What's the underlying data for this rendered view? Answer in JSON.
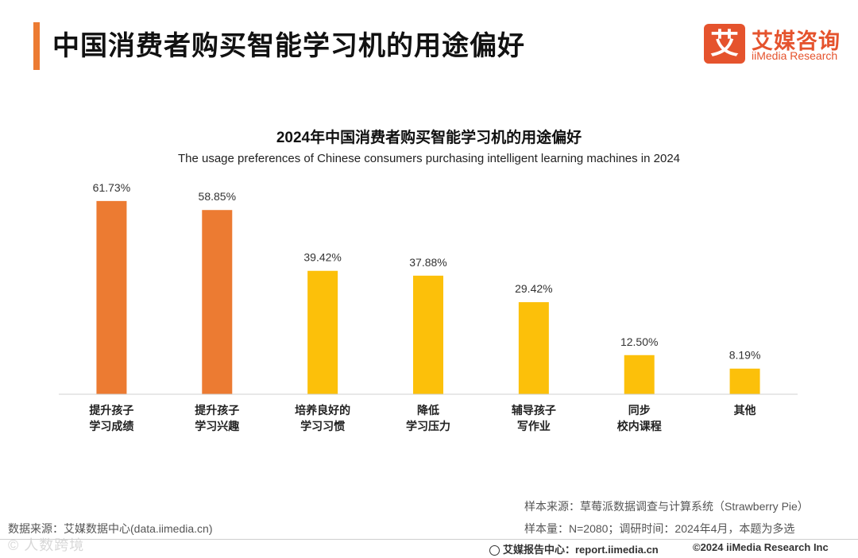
{
  "header": {
    "title": "中国消费者购买智能学习机的用途偏好",
    "logo_mark": "艾",
    "logo_cn": "艾媒咨询",
    "logo_en": "iiMedia Research"
  },
  "colors": {
    "accent": "#ec7b32",
    "bar_highlight": "#ec7b32",
    "bar_normal": "#fcc00a"
  },
  "chart_data": {
    "type": "bar",
    "title": "2024年中国消费者购买智能学习机的用途偏好",
    "subtitle": "The usage preferences of Chinese consumers purchasing intelligent learning machines in 2024",
    "categories": [
      [
        "提升孩子",
        "学习成绩"
      ],
      [
        "提升孩子",
        "学习兴趣"
      ],
      [
        "培养良好的",
        "学习习惯"
      ],
      [
        "降低",
        "学习压力"
      ],
      [
        "辅导孩子",
        "写作业"
      ],
      [
        "同步",
        "校内课程"
      ],
      [
        "其他"
      ]
    ],
    "values": [
      61.73,
      58.85,
      39.42,
      37.88,
      29.42,
      12.5,
      8.19
    ],
    "value_labels": [
      "61.73%",
      "58.85%",
      "39.42%",
      "37.88%",
      "29.42%",
      "12.50%",
      "8.19%"
    ],
    "highlighted": [
      true,
      true,
      false,
      false,
      false,
      false,
      false
    ],
    "ylim": [
      0,
      65
    ],
    "xlabel": "",
    "ylabel": "",
    "grid": false
  },
  "footer": {
    "data_source": "数据来源：艾媒数据中心(data.iimedia.cn)",
    "sample_source": "样本来源：草莓派数据调查与计算系统（Strawberry Pie）",
    "sample_size": "样本量：N=2080；调研时间：2024年4月，本题为多选",
    "watermark": "© 人数跨境",
    "report_center": "艾媒报告中心：report.iimedia.cn",
    "copyright": "©2024  iiMedia Research  Inc"
  }
}
